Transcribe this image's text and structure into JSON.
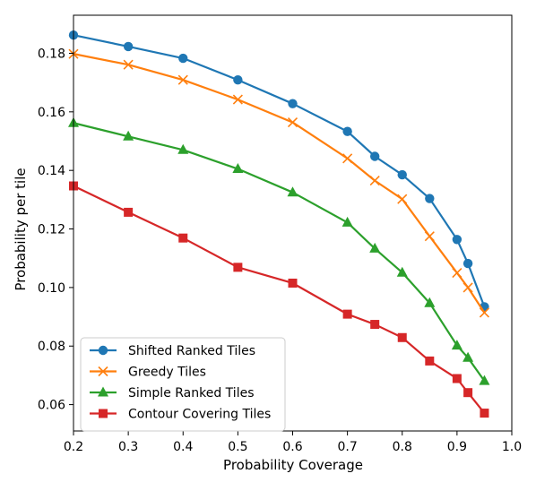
{
  "chart_data": {
    "type": "line",
    "xlabel": "Probability Coverage",
    "ylabel": "Probability per tile",
    "xlim": [
      0.2,
      1.0
    ],
    "ylim": [
      0.051,
      0.193
    ],
    "x_ticks": [
      "0.2",
      "0.3",
      "0.4",
      "0.5",
      "0.6",
      "0.7",
      "0.8",
      "0.9",
      "1.0"
    ],
    "y_ticks": [
      "0.06",
      "0.08",
      "0.10",
      "0.12",
      "0.14",
      "0.16",
      "0.18"
    ],
    "grid": false,
    "legend_position": "lower-left",
    "series": [
      {
        "name": "Shifted Ranked Tiles",
        "color": "#1f77b4",
        "marker": "circle",
        "x": [
          0.2,
          0.3,
          0.4,
          0.5,
          0.6,
          0.7,
          0.75,
          0.8,
          0.85,
          0.9,
          0.92,
          0.95
        ],
        "y": [
          0.1862,
          0.1823,
          0.1783,
          0.1709,
          0.1628,
          0.1533,
          0.1448,
          0.1385,
          0.1304,
          0.1164,
          0.1082,
          0.0934
        ]
      },
      {
        "name": "Greedy Tiles",
        "color": "#ff7f0e",
        "marker": "x",
        "x": [
          0.2,
          0.3,
          0.4,
          0.5,
          0.6,
          0.7,
          0.75,
          0.8,
          0.85,
          0.9,
          0.92,
          0.95
        ],
        "y": [
          0.1798,
          0.1761,
          0.1709,
          0.1642,
          0.1564,
          0.1441,
          0.1365,
          0.1302,
          0.1175,
          0.105,
          0.1,
          0.0914
        ]
      },
      {
        "name": "Simple Ranked Tiles",
        "color": "#2ca02c",
        "marker": "triangle",
        "x": [
          0.2,
          0.3,
          0.4,
          0.5,
          0.6,
          0.7,
          0.75,
          0.8,
          0.85,
          0.9,
          0.92,
          0.95
        ],
        "y": [
          0.1562,
          0.1516,
          0.147,
          0.1405,
          0.1325,
          0.1222,
          0.1133,
          0.1051,
          0.0947,
          0.0802,
          0.076,
          0.0681
        ]
      },
      {
        "name": "Contour Covering Tiles",
        "color": "#d62728",
        "marker": "square",
        "x": [
          0.2,
          0.3,
          0.4,
          0.5,
          0.6,
          0.7,
          0.75,
          0.8,
          0.85,
          0.9,
          0.92,
          0.95
        ],
        "y": [
          0.1347,
          0.1257,
          0.1169,
          0.1069,
          0.1015,
          0.0909,
          0.0874,
          0.0829,
          0.0749,
          0.0689,
          0.0641,
          0.0571
        ]
      }
    ]
  }
}
